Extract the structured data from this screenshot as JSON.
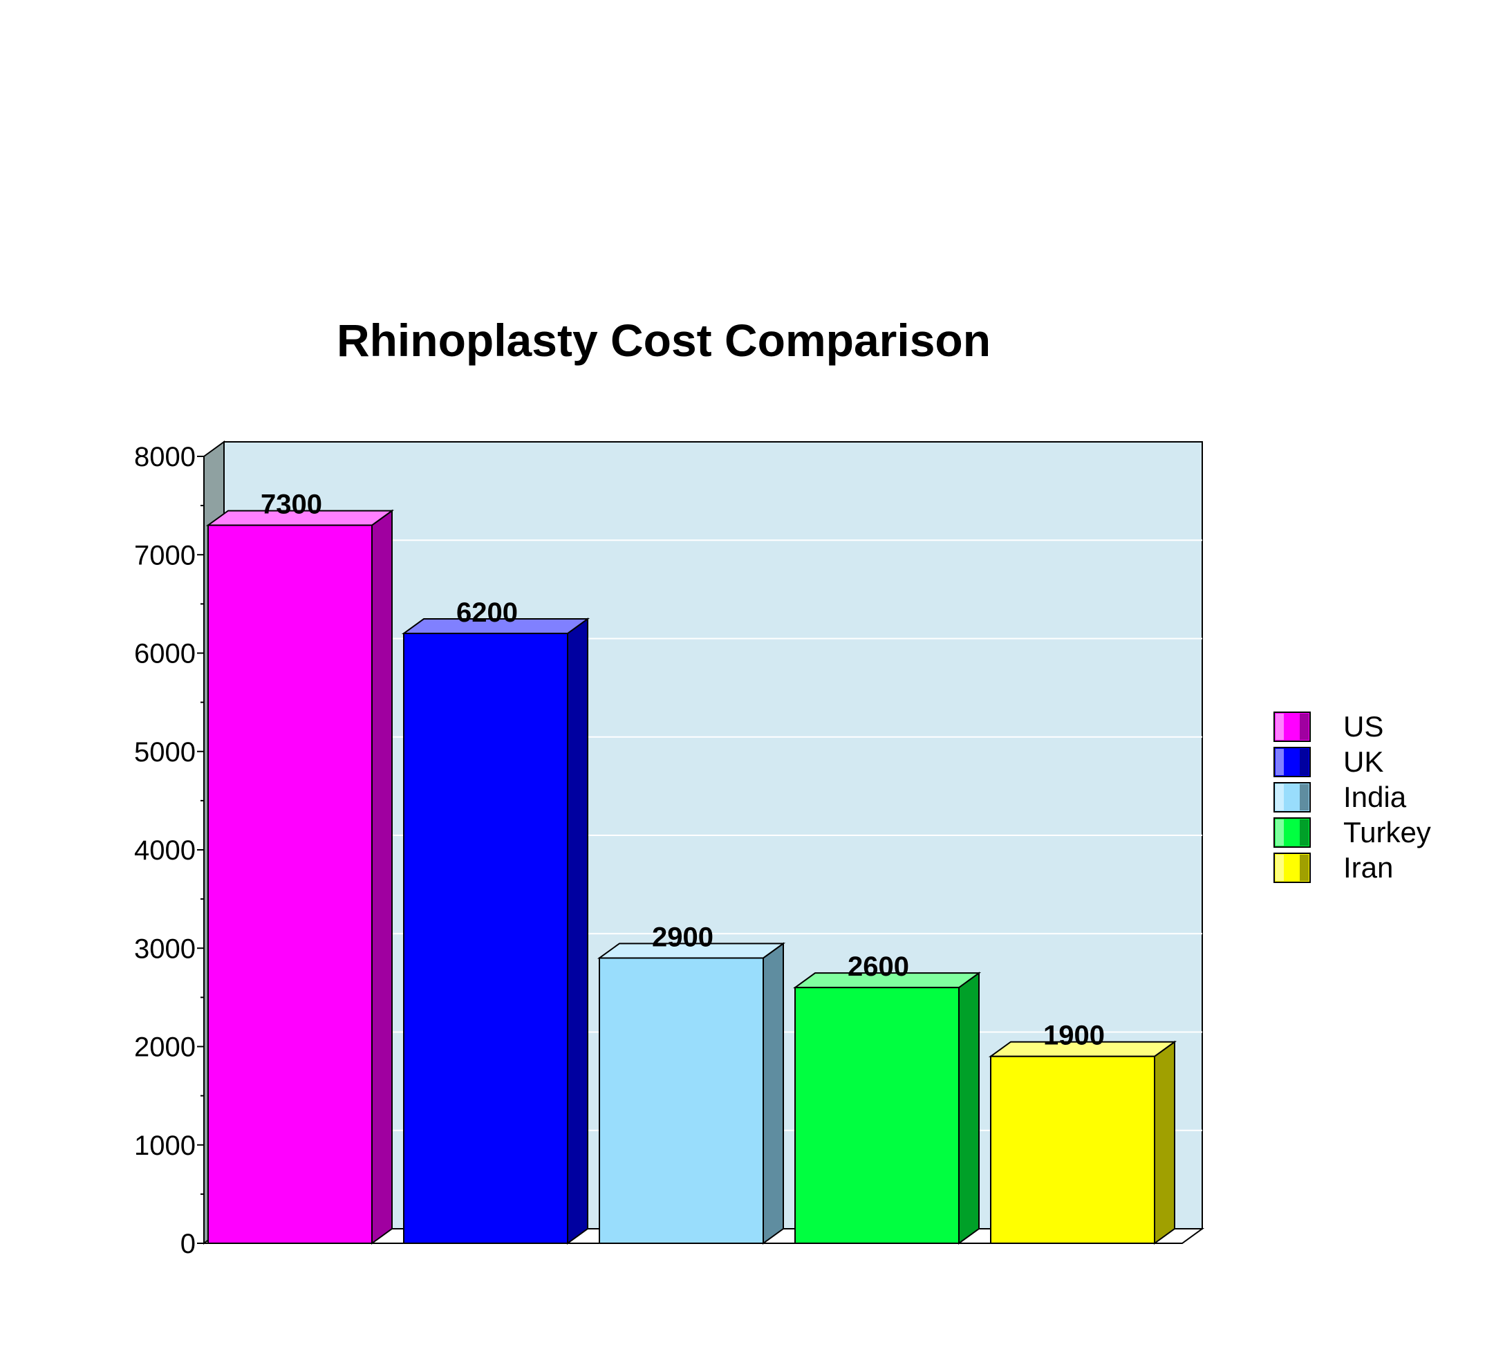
{
  "chart_data": {
    "type": "bar",
    "title": "Rhinoplasty Cost Comparison",
    "xlabel": "",
    "ylabel": "",
    "categories": [
      "US",
      "UK",
      "India",
      "Turkey",
      "Iran"
    ],
    "values": [
      7300,
      6200,
      2900,
      2600,
      1900
    ],
    "value_labels": [
      "7300",
      "6200",
      "2900",
      "2600",
      "1900"
    ],
    "ylim": [
      0,
      8000
    ],
    "yticks": [
      0,
      1000,
      2000,
      3000,
      4000,
      5000,
      6000,
      7000,
      8000
    ],
    "ytick_labels": [
      "0",
      "1000",
      "2000",
      "3000",
      "4000",
      "5000",
      "6000",
      "7000",
      "8000"
    ],
    "grid": true,
    "style": "3d",
    "legend": {
      "position": "right",
      "entries": [
        "US",
        "UK",
        "India",
        "Turkey",
        "Iran"
      ]
    },
    "colors": {
      "US": {
        "front": "#ff00ff",
        "top": "#ff80ff",
        "side": "#a000a0"
      },
      "UK": {
        "front": "#0000ff",
        "top": "#8080ff",
        "side": "#0000a0"
      },
      "India": {
        "front": "#99ddfc",
        "top": "#ccefff",
        "side": "#5f8da0"
      },
      "Turkey": {
        "front": "#00ff40",
        "top": "#80ff9f",
        "side": "#00a028"
      },
      "Iran": {
        "front": "#ffff00",
        "top": "#ffff80",
        "side": "#a0a000"
      }
    },
    "plot_background": "#d3e9f2",
    "left_wall": "#8fa1a1"
  }
}
